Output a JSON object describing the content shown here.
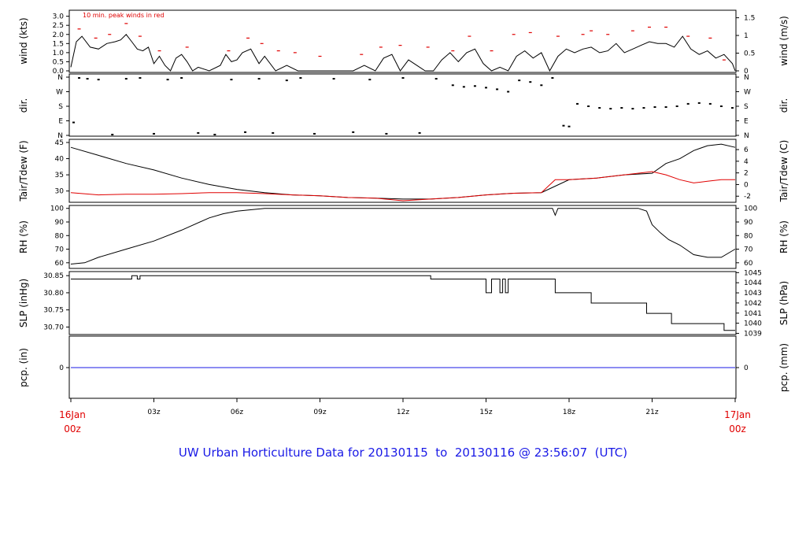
{
  "title": "UW Urban Horticulture Data for 20130115  to  20130116 @ 23:56:07  (UTC)",
  "colors": {
    "main": "#000000",
    "red": "#e00000",
    "blue": "#1a1ae6"
  },
  "time_axis": {
    "range_hours": [
      0,
      24
    ],
    "ticks": [
      {
        "hour": 3,
        "label": "03z"
      },
      {
        "hour": 6,
        "label": "06z"
      },
      {
        "hour": 9,
        "label": "09z"
      },
      {
        "hour": 12,
        "label": "12z"
      },
      {
        "hour": 15,
        "label": "15z"
      },
      {
        "hour": 18,
        "label": "18z"
      },
      {
        "hour": 21,
        "label": "21z"
      }
    ],
    "start_label": [
      "16Jan",
      "00z"
    ],
    "end_label": [
      "17Jan",
      "00z"
    ]
  },
  "panels": {
    "wind": {
      "left_label": "wind (kts)",
      "right_label": "wind (m/s)",
      "note": "10 min. peak winds in red",
      "left_ticks": [
        "0.0",
        "0.5",
        "1.0",
        "1.5",
        "2.0",
        "2.5",
        "3.0"
      ],
      "right_ticks": [
        "0",
        "0.5",
        "1",
        "1.5"
      ]
    },
    "dir": {
      "left_label": "dir.",
      "right_label": "dir.",
      "ticks": [
        "N",
        "E",
        "S",
        "W",
        "N"
      ]
    },
    "temp": {
      "left_label": "Tair/Tdew (F)",
      "right_label": "Tair/Tdew (C)",
      "left_ticks": [
        "30",
        "35",
        "40",
        "45"
      ],
      "right_ticks": [
        "-2",
        "0",
        "2",
        "4",
        "6"
      ]
    },
    "rh": {
      "left_label": "RH (%)",
      "right_label": "RH (%)",
      "ticks": [
        "60",
        "70",
        "80",
        "90",
        "100"
      ]
    },
    "slp": {
      "left_label": "SLP (inHg)",
      "right_label": "SLP (hPa)",
      "left_ticks": [
        "30.70",
        "30.75",
        "30.80",
        "30.85"
      ],
      "right_ticks": [
        "1039",
        "1040",
        "1041",
        "1042",
        "1043",
        "1044",
        "1045"
      ]
    },
    "pcp": {
      "left_label": "pcp. (in)",
      "right_label": "pcp. (mm)",
      "left_ticks": [
        "0"
      ],
      "right_ticks": [
        "0"
      ]
    }
  },
  "chart_data": [
    {
      "type": "line",
      "panel": "wind",
      "ylabel": "wind (kts)",
      "ylim": [
        0,
        3.2
      ],
      "series": [
        {
          "name": "10 min. peak winds in red",
          "x": [
            0.3,
            0.9,
            1.4,
            2.0,
            2.5,
            3.2,
            4.2,
            5.7,
            6.4,
            6.9,
            7.5,
            8.1,
            9.0,
            10.5,
            11.2,
            11.9,
            12.9,
            13.8,
            14.4,
            15.2,
            16.0,
            16.6,
            17.6,
            18.5,
            18.8,
            19.4,
            20.3,
            20.9,
            21.5,
            22.3,
            23.1,
            23.6
          ],
          "y": [
            2.3,
            1.8,
            2.0,
            2.6,
            1.9,
            1.1,
            1.3,
            1.1,
            1.8,
            1.5,
            1.1,
            1.0,
            0.8,
            0.9,
            1.3,
            1.4,
            1.3,
            1.1,
            1.9,
            1.1,
            2.0,
            2.1,
            1.9,
            2.0,
            2.2,
            2.0,
            2.2,
            2.4,
            2.4,
            1.9,
            1.8,
            0.6
          ]
        },
        {
          "name": "",
          "x": [
            0,
            0.2,
            0.4,
            0.7,
            1.0,
            1.3,
            1.6,
            1.8,
            2.0,
            2.2,
            2.4,
            2.6,
            2.8,
            3.0,
            3.2,
            3.4,
            3.6,
            3.8,
            4.0,
            4.2,
            4.4,
            4.6,
            5.0,
            5.4,
            5.6,
            5.8,
            6.0,
            6.2,
            6.5,
            6.8,
            7.0,
            7.4,
            7.8,
            8.2,
            8.6,
            9.0,
            9.4,
            9.8,
            10.2,
            10.6,
            11.0,
            11.3,
            11.6,
            11.9,
            12.2,
            12.5,
            12.8,
            13.1,
            13.4,
            13.7,
            14.0,
            14.3,
            14.6,
            14.9,
            15.2,
            15.5,
            15.8,
            16.1,
            16.4,
            16.7,
            17.0,
            17.3,
            17.6,
            17.9,
            18.2,
            18.5,
            18.8,
            19.1,
            19.4,
            19.7,
            20.0,
            20.3,
            20.6,
            20.9,
            21.2,
            21.5,
            21.8,
            22.1,
            22.4,
            22.7,
            23.0,
            23.3,
            23.6,
            23.9,
            24.0
          ],
          "y": [
            0.2,
            1.6,
            1.9,
            1.3,
            1.2,
            1.5,
            1.6,
            1.7,
            2.0,
            1.6,
            1.2,
            1.1,
            1.3,
            0.4,
            0.8,
            0.3,
            0.0,
            0.7,
            0.9,
            0.5,
            0.0,
            0.2,
            0.0,
            0.3,
            0.9,
            0.5,
            0.6,
            1.0,
            1.2,
            0.4,
            0.8,
            0.0,
            0.3,
            0.0,
            0.0,
            0.0,
            0.0,
            0.0,
            0.0,
            0.3,
            0.0,
            0.7,
            0.9,
            0.0,
            0.6,
            0.3,
            0.0,
            0.0,
            0.6,
            1.0,
            0.5,
            1.0,
            1.2,
            0.4,
            0.0,
            0.2,
            0.0,
            0.8,
            1.1,
            0.7,
            1.0,
            0.0,
            0.8,
            1.2,
            1.0,
            1.2,
            1.3,
            1.0,
            1.1,
            1.5,
            1.0,
            1.2,
            1.4,
            1.6,
            1.5,
            1.5,
            1.3,
            1.9,
            1.2,
            0.9,
            1.1,
            0.7,
            0.9,
            0.4,
            0.0
          ]
        }
      ]
    },
    {
      "type": "scatter",
      "panel": "dir",
      "ylabel": "dir.",
      "ylim": [
        0,
        360
      ],
      "series": [
        {
          "name": "",
          "x": [
            0.1,
            0.3,
            0.6,
            1.0,
            1.5,
            2.0,
            2.5,
            3.0,
            3.5,
            4.0,
            4.6,
            5.2,
            5.8,
            6.3,
            6.8,
            7.3,
            7.8,
            8.3,
            8.8,
            9.5,
            10.2,
            10.8,
            11.4,
            12.0,
            12.6,
            13.2,
            13.8,
            14.2,
            14.6,
            15.0,
            15.4,
            15.8,
            16.2,
            16.6,
            17.0,
            17.4,
            17.8,
            18.0,
            18.3,
            18.7,
            19.1,
            19.5,
            19.9,
            20.3,
            20.7,
            21.1,
            21.5,
            21.9,
            22.3,
            22.7,
            23.1,
            23.5,
            23.9
          ],
          "y": [
            80,
            355,
            350,
            345,
            5,
            350,
            355,
            10,
            345,
            355,
            15,
            5,
            345,
            20,
            350,
            15,
            340,
            355,
            10,
            350,
            20,
            345,
            10,
            355,
            15,
            350,
            310,
            300,
            305,
            295,
            285,
            270,
            340,
            330,
            310,
            355,
            60,
            55,
            195,
            180,
            170,
            165,
            170,
            165,
            170,
            175,
            175,
            180,
            195,
            200,
            195,
            180,
            170
          ]
        }
      ]
    },
    {
      "type": "line",
      "panel": "temp",
      "ylabel": "Tair/Tdew (F)",
      "ylim": [
        27,
        45
      ],
      "series": [
        {
          "name": "Tair",
          "x": [
            0,
            1,
            2,
            3,
            4,
            5,
            6,
            7,
            8,
            9,
            10,
            11,
            12,
            13,
            14,
            15,
            16,
            17,
            17.5,
            18,
            19,
            20,
            21,
            21.5,
            22,
            22.5,
            23,
            23.5,
            24
          ],
          "y": [
            43.5,
            41.0,
            38.5,
            36.5,
            34.0,
            32.0,
            30.5,
            29.5,
            28.8,
            28.5,
            28.0,
            27.8,
            27.5,
            27.5,
            28.0,
            28.8,
            29.3,
            29.5,
            31.5,
            33.5,
            34.0,
            35.0,
            35.5,
            38.5,
            40.0,
            42.5,
            44.0,
            44.5,
            43.5
          ]
        },
        {
          "name": "Tdew",
          "x": [
            0,
            1,
            2,
            3,
            4,
            5,
            6,
            7,
            8,
            9,
            10,
            11,
            12,
            13,
            14,
            15,
            16,
            17,
            17.5,
            18,
            19,
            20,
            21,
            21.5,
            22,
            22.5,
            23,
            23.5,
            24
          ],
          "y": [
            29.5,
            28.8,
            29.0,
            29.0,
            29.2,
            29.5,
            29.5,
            29.2,
            28.8,
            28.5,
            28.0,
            27.8,
            27.0,
            27.5,
            28.0,
            28.8,
            29.3,
            29.5,
            33.5,
            33.5,
            34.0,
            35.0,
            36.0,
            35.0,
            33.5,
            32.5,
            33.0,
            33.5,
            33.5
          ]
        }
      ]
    },
    {
      "type": "line",
      "panel": "rh",
      "ylabel": "RH (%)",
      "ylim": [
        57,
        101
      ],
      "series": [
        {
          "name": "",
          "x": [
            0,
            0.5,
            1,
            2,
            3,
            4,
            5,
            5.5,
            6,
            6.5,
            7,
            8,
            9,
            10,
            11,
            12,
            13,
            14,
            15,
            16,
            17,
            17.4,
            17.5,
            17.6,
            18,
            18.5,
            19,
            20,
            20.5,
            20.8,
            21,
            21.3,
            21.6,
            22,
            22.5,
            23,
            23.5,
            24
          ],
          "y": [
            59,
            60,
            64,
            70,
            76,
            84,
            93,
            96,
            98,
            99,
            100,
            100,
            100,
            100,
            100,
            100,
            100,
            100,
            100,
            100,
            100,
            100,
            95,
            100,
            100,
            100,
            100,
            100,
            100,
            98,
            88,
            82,
            77,
            73,
            66,
            64,
            64,
            70
          ]
        }
      ]
    },
    {
      "type": "line",
      "panel": "slp",
      "ylabel": "SLP (inHg)",
      "ylim": [
        30.685,
        30.855
      ],
      "series": [
        {
          "name": "",
          "x": [
            0,
            2.2,
            2.2,
            2.4,
            2.4,
            2.5,
            2.5,
            13.0,
            13.0,
            15.0,
            15.0,
            15.2,
            15.2,
            15.5,
            15.5,
            15.6,
            15.6,
            15.7,
            15.7,
            15.8,
            15.8,
            16.1,
            16.1,
            17.5,
            17.5,
            18.8,
            18.8,
            20.8,
            20.8,
            21.7,
            21.7,
            23.6,
            23.6,
            24
          ],
          "y": [
            30.84,
            30.84,
            30.85,
            30.85,
            30.84,
            30.84,
            30.85,
            30.85,
            30.84,
            30.84,
            30.8,
            30.8,
            30.84,
            30.84,
            30.8,
            30.8,
            30.84,
            30.84,
            30.8,
            30.8,
            30.84,
            30.84,
            30.84,
            30.84,
            30.8,
            30.8,
            30.77,
            30.77,
            30.74,
            30.74,
            30.71,
            30.71,
            30.69,
            30.69
          ]
        }
      ]
    },
    {
      "type": "line",
      "panel": "pcp",
      "ylabel": "pcp. (in)",
      "ylim": [
        -1,
        1
      ],
      "series": [
        {
          "name": "",
          "x": [
            0,
            24
          ],
          "y": [
            0,
            0
          ]
        }
      ]
    }
  ]
}
